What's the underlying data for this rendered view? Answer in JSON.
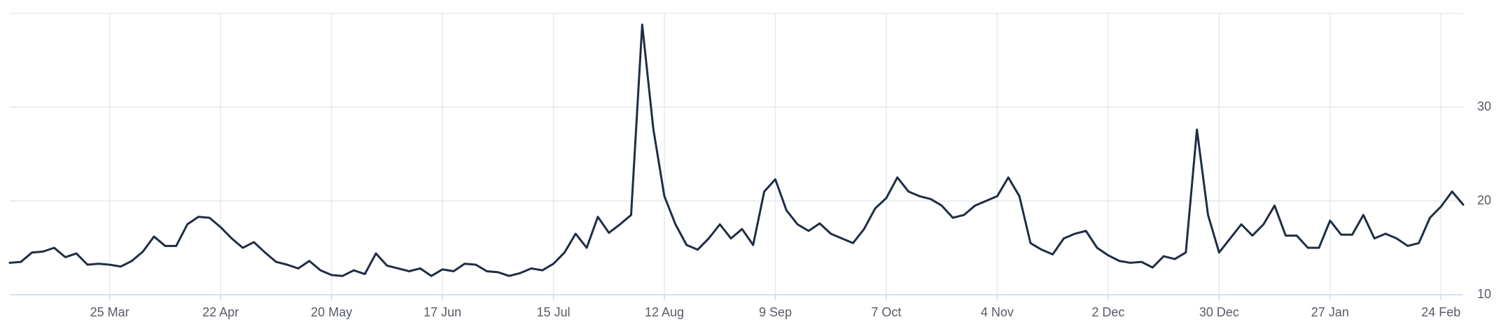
{
  "chart_data": {
    "type": "line",
    "color": "#1f2d45",
    "categories": [
      null,
      null,
      null,
      null,
      null,
      null,
      null,
      null,
      null,
      "25 Mar",
      null,
      null,
      null,
      null,
      null,
      null,
      null,
      null,
      null,
      "22 Apr",
      null,
      null,
      null,
      null,
      null,
      null,
      null,
      null,
      null,
      "20 May",
      null,
      null,
      null,
      null,
      null,
      null,
      null,
      null,
      null,
      "17 Jun",
      null,
      null,
      null,
      null,
      null,
      null,
      null,
      null,
      null,
      "15 Jul",
      null,
      null,
      null,
      null,
      null,
      null,
      null,
      null,
      null,
      "12 Aug",
      null,
      null,
      null,
      null,
      null,
      null,
      null,
      null,
      null,
      "9 Sep",
      null,
      null,
      null,
      null,
      null,
      null,
      null,
      null,
      null,
      "7 Oct",
      null,
      null,
      null,
      null,
      null,
      null,
      null,
      null,
      null,
      "4 Nov",
      null,
      null,
      null,
      null,
      null,
      null,
      null,
      null,
      null,
      "2 Dec",
      null,
      null,
      null,
      null,
      null,
      null,
      null,
      null,
      null,
      "30 Dec",
      null,
      null,
      null,
      null,
      null,
      null,
      null,
      null,
      null,
      "27 Jan",
      null,
      null,
      null,
      null,
      null,
      null,
      null,
      null,
      null,
      "24 Feb",
      null,
      null
    ],
    "values": [
      13.4,
      13.5,
      14.5,
      14.6,
      15.0,
      14.0,
      14.4,
      13.2,
      13.3,
      13.2,
      13.0,
      13.6,
      14.6,
      16.2,
      15.2,
      15.2,
      17.5,
      18.3,
      18.2,
      17.2,
      16.0,
      15.0,
      15.6,
      14.5,
      13.5,
      13.2,
      12.8,
      13.6,
      12.6,
      12.1,
      12.0,
      12.6,
      12.2,
      14.4,
      13.1,
      12.8,
      12.5,
      12.8,
      12.0,
      12.7,
      12.5,
      13.3,
      13.2,
      12.5,
      12.4,
      12.0,
      12.3,
      12.8,
      12.6,
      13.3,
      14.5,
      16.5,
      15.0,
      18.3,
      16.6,
      17.5,
      18.5,
      38.8,
      27.7,
      20.5,
      17.5,
      15.3,
      14.8,
      16.0,
      17.5,
      16.0,
      17.0,
      15.3,
      21.0,
      22.3,
      19.0,
      17.5,
      16.8,
      17.6,
      16.5,
      16.0,
      15.5,
      17.0,
      19.2,
      20.3,
      22.5,
      21.0,
      20.5,
      20.2,
      19.5,
      18.2,
      18.5,
      19.5,
      20.0,
      20.5,
      22.5,
      20.5,
      15.5,
      14.8,
      14.3,
      16.0,
      16.5,
      16.8,
      15.0,
      14.2,
      13.6,
      13.4,
      13.5,
      12.9,
      14.1,
      13.8,
      14.5,
      27.6,
      18.5,
      14.5,
      16.0,
      17.5,
      16.3,
      17.5,
      19.5,
      16.3,
      16.3,
      15.0,
      15.0,
      17.9,
      16.4,
      16.4,
      18.5,
      16.0,
      16.5,
      16.0,
      15.2,
      15.5,
      18.2,
      19.4,
      21.0,
      19.6
    ],
    "ylim": [
      10,
      40
    ],
    "yticks": [
      10,
      20,
      30
    ],
    "grid": true
  }
}
